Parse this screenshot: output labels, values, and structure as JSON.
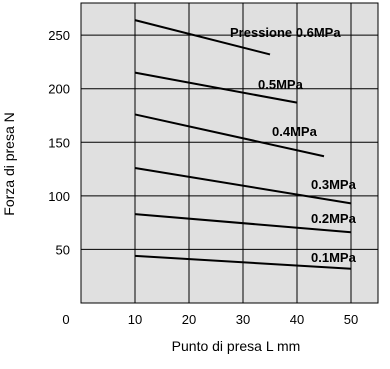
{
  "chart_data": {
    "type": "line",
    "title": "",
    "xlabel": "Punto di presa L mm",
    "ylabel": "Forza di presa N",
    "xlim": [
      0,
      55
    ],
    "ylim": [
      0,
      280
    ],
    "x_ticks": [
      "0",
      "10",
      "20",
      "30",
      "40",
      "50"
    ],
    "y_ticks": [
      "50",
      "100",
      "150",
      "200",
      "250"
    ],
    "grid": true,
    "background": "#e0e0e0",
    "series": [
      {
        "name": "Pressione 0.6MPa",
        "x": [
          10,
          35
        ],
        "y": [
          264,
          232
        ]
      },
      {
        "name": "0.5MPa",
        "x": [
          10,
          40
        ],
        "y": [
          215,
          187
        ]
      },
      {
        "name": "0.4MPa",
        "x": [
          10,
          45
        ],
        "y": [
          176,
          137
        ]
      },
      {
        "name": "0.3MPa",
        "x": [
          10,
          50
        ],
        "y": [
          126,
          93
        ]
      },
      {
        "name": "0.2MPa",
        "x": [
          10,
          50
        ],
        "y": [
          83,
          66
        ]
      },
      {
        "name": "0.1MPa",
        "x": [
          10,
          50
        ],
        "y": [
          44,
          32
        ]
      }
    ]
  }
}
